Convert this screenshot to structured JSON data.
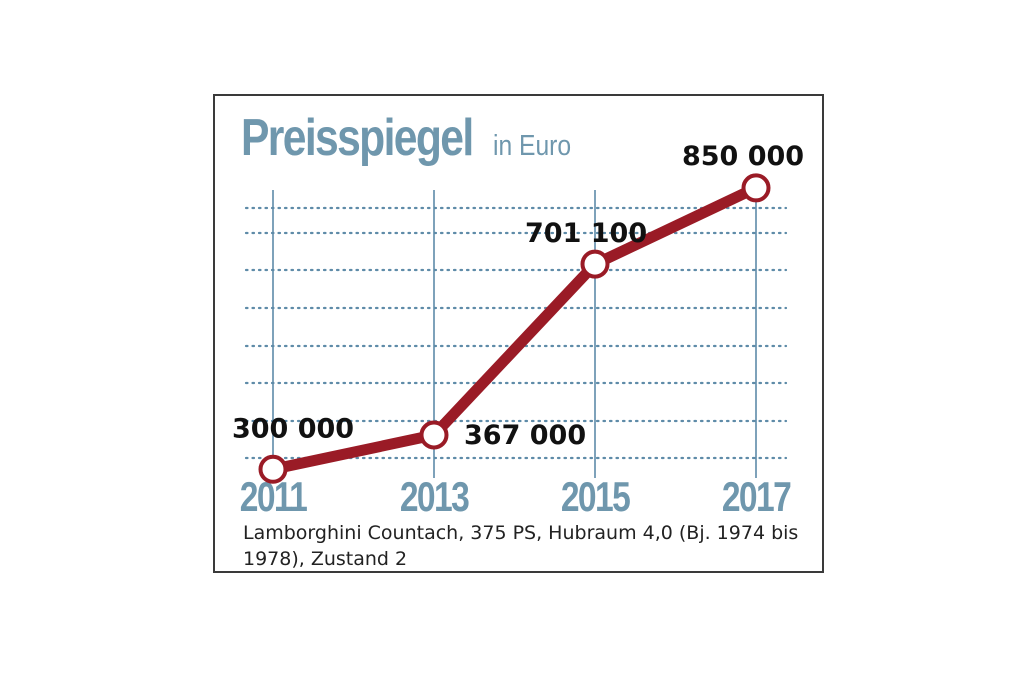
{
  "chart_data": {
    "type": "line",
    "title": "Preisspiegel",
    "subtitle": "in Euro",
    "categories": [
      "2011",
      "2013",
      "2015",
      "2017"
    ],
    "series": [
      {
        "values": [
          300000,
          367000,
          701100,
          850000
        ]
      }
    ],
    "data_labels": [
      "300 000",
      "367 000",
      "701 100",
      "850 000"
    ],
    "ylim": [
      285000,
      885000
    ],
    "grid": true,
    "caption": "Lamborghini Countach, 375 PS, Hubraum 4,0 (Bj. 1974 bis 1978), Zustand 2",
    "colors": {
      "line": "#9a1b26",
      "marker_fill": "#ffffff",
      "axis_text": "#6f97ad",
      "grid": "#5e8ba8",
      "label_text": "#111111"
    }
  }
}
